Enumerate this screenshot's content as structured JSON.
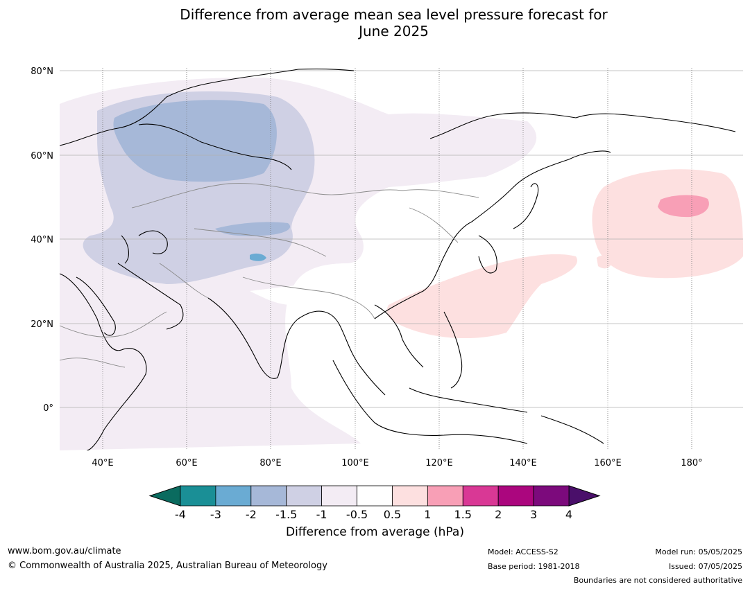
{
  "title_line1": "Difference from average mean sea level pressure forecast for",
  "title_line2": "June 2025",
  "map": {
    "lat_labels": [
      "80°N",
      "60°N",
      "40°N",
      "20°N",
      "0°"
    ],
    "lon_labels": [
      "40°E",
      "60°E",
      "80°E",
      "100°E",
      "120°E",
      "140°E",
      "160°E",
      "180°"
    ]
  },
  "colorbar": {
    "title": "Difference from average (hPa)",
    "ticks": [
      "-4",
      "-3",
      "-2",
      "-1.5",
      "-1",
      "-0.5",
      "0.5",
      "1",
      "1.5",
      "2",
      "3",
      "4"
    ],
    "colors": [
      "#1a8f96",
      "#6aabd3",
      "#a6b8d8",
      "#cfd0e4",
      "#f3ecf4",
      "#ffffff",
      "#fde0e0",
      "#f89fb6",
      "#d93895",
      "#ab067e",
      "#7c0a7c"
    ],
    "under_color": "#0a6b5f",
    "over_color": "#4a0f6a"
  },
  "footer": {
    "url": "www.bom.gov.au/climate",
    "copyright": "© Commonwealth of Australia 2025, Australian Bureau of Meteorology",
    "model": "Model: ACCESS-S2",
    "base_period": "Base period: 1981-2018",
    "model_run": "Model run: 05/05/2025",
    "issued": "Issued: 07/05/2025",
    "boundaries": "Boundaries are not considered authoritative"
  }
}
